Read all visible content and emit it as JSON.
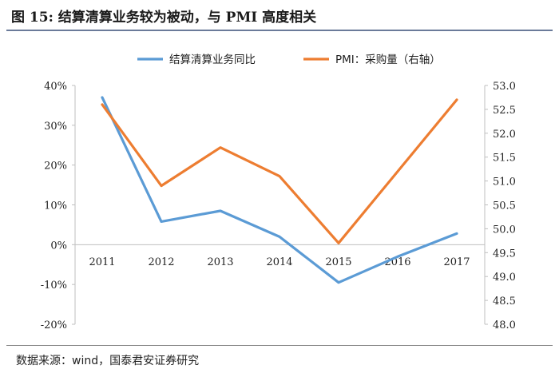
{
  "title": "图 15:   结算清算业务较为被动，与 PMI 高度相关",
  "source": "数据来源：wind，国泰君安证券研究",
  "colors": {
    "series1": "#5b9bd5",
    "series2": "#ed7d31",
    "axis": "#bfbfbf"
  },
  "chart_data": {
    "type": "line",
    "categories": [
      "2011",
      "2012",
      "2013",
      "2014",
      "2015",
      "2016",
      "2017"
    ],
    "series": [
      {
        "name": "结算清算业务同比",
        "axis": "left",
        "values": [
          37,
          5.8,
          8.5,
          2,
          -9.5,
          -3,
          2.8
        ]
      },
      {
        "name": "PMI：采购量（右轴）",
        "axis": "right",
        "values": [
          52.6,
          50.9,
          51.7,
          51.1,
          49.7,
          51.2,
          52.7
        ]
      }
    ],
    "y_left": {
      "min": -20,
      "max": 40,
      "ticks": [
        -20,
        -10,
        0,
        10,
        20,
        30,
        40
      ],
      "tick_labels": [
        "-20%",
        "-10%",
        "0%",
        "10%",
        "20%",
        "30%",
        "40%"
      ]
    },
    "y_right": {
      "min": 48.0,
      "max": 53.0,
      "ticks": [
        48.0,
        48.5,
        49.0,
        49.5,
        50.0,
        50.5,
        51.0,
        51.5,
        52.0,
        52.5,
        53.0
      ],
      "tick_labels": [
        "48.0",
        "48.5",
        "49.0",
        "49.5",
        "50.0",
        "50.5",
        "51.0",
        "51.5",
        "52.0",
        "52.5",
        "53.0"
      ]
    },
    "legend": "top-center"
  }
}
